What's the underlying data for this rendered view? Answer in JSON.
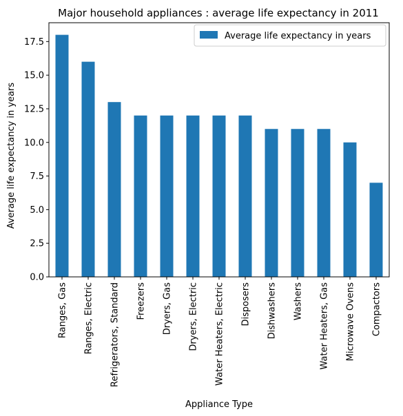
{
  "chart_data": {
    "type": "bar",
    "title": "Major household appliances : average life expectancy in 2011",
    "xlabel": "Appliance Type",
    "ylabel": "Average life expectancy in years",
    "categories": [
      "Ranges, Gas",
      "Ranges, Electric",
      "Refrigerators, Standard",
      "Freezers",
      "Dryers, Gas",
      "Dryers, Electric",
      "Water Heaters, Electric",
      "Disposers",
      "Dishwashers",
      "Washers",
      "Water Heaters, Gas",
      "Microwave Ovens",
      "Compactors"
    ],
    "series": [
      {
        "name": "Average life expectancy in years",
        "values": [
          18,
          16,
          13,
          12,
          12,
          12,
          12,
          12,
          11,
          11,
          11,
          10,
          7
        ],
        "color": "#1f77b4"
      }
    ],
    "ylim": [
      0,
      18.9
    ],
    "yticks": [
      0.0,
      2.5,
      5.0,
      7.5,
      10.0,
      12.5,
      15.0,
      17.5
    ],
    "ytick_labels": [
      "0.0",
      "2.5",
      "5.0",
      "7.5",
      "10.0",
      "12.5",
      "15.0",
      "17.5"
    ],
    "legend_position": "top-right",
    "grid": false
  }
}
